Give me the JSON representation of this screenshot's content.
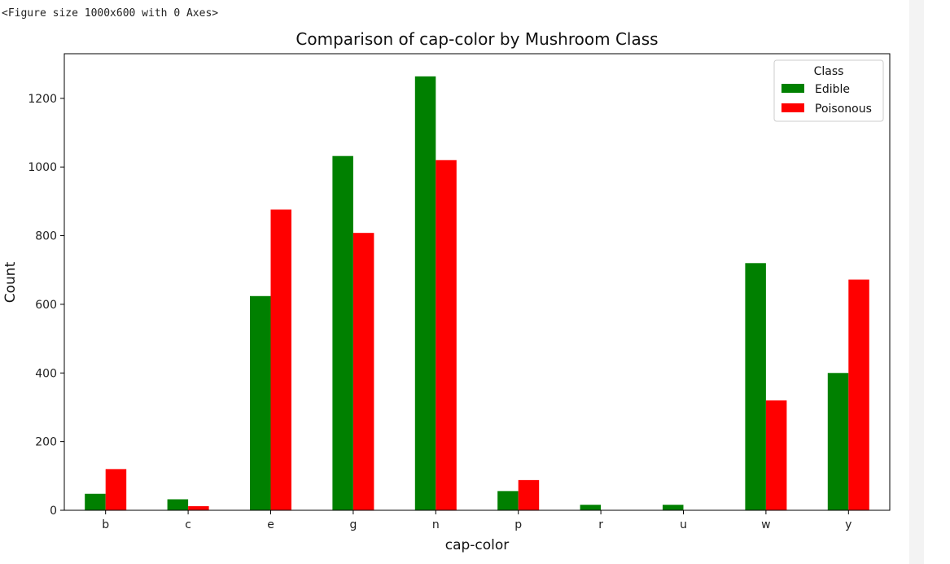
{
  "output": {
    "figure_repr": "<Figure size 1000x600 with 0 Axes>"
  },
  "chart_data": {
    "type": "bar",
    "title": "Comparison of cap-color by Mushroom Class",
    "xlabel": "cap-color",
    "ylabel": "Count",
    "categories": [
      "b",
      "c",
      "e",
      "g",
      "n",
      "p",
      "r",
      "u",
      "w",
      "y"
    ],
    "series": [
      {
        "name": "Edible",
        "color": "#008000",
        "values": [
          48,
          32,
          624,
          1032,
          1264,
          56,
          16,
          16,
          720,
          400
        ]
      },
      {
        "name": "Poisonous",
        "color": "#ff0000",
        "values": [
          120,
          12,
          876,
          808,
          1020,
          88,
          0,
          0,
          320,
          672
        ]
      }
    ],
    "ylim": [
      0,
      1330
    ],
    "yticks": [
      0,
      200,
      400,
      600,
      800,
      1000,
      1200
    ],
    "grid": false,
    "legend": {
      "title": "Class",
      "placement": "top-right"
    }
  }
}
